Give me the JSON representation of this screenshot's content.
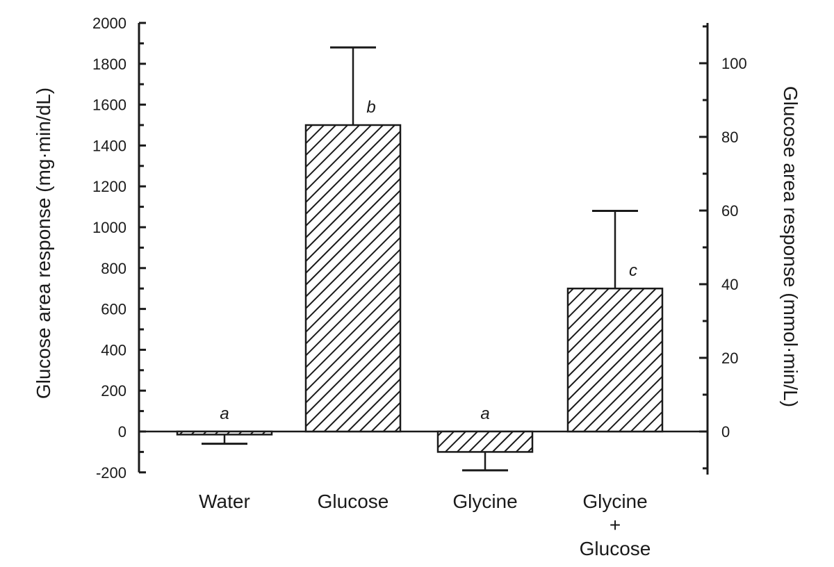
{
  "chart_data": {
    "type": "bar",
    "title": "",
    "categories": [
      "Water",
      "Glucose",
      "Glycine",
      "Glycine + Glucose"
    ],
    "category_label_lines": [
      [
        "Water"
      ],
      [
        "Glucose"
      ],
      [
        "Glycine"
      ],
      [
        "Glycine",
        "+",
        "Glucose"
      ]
    ],
    "series": [
      {
        "name": "Glucose area response",
        "values": [
          -15,
          1500,
          -100,
          700
        ],
        "error_bars": [
          45,
          380,
          90,
          380
        ],
        "error_direction": [
          "down",
          "up",
          "down",
          "up"
        ],
        "significance_letters": [
          "a",
          "b",
          "a",
          "c"
        ],
        "fill_pattern": "diagonal-hatch"
      }
    ],
    "xlabel": "",
    "ylabel": "Glucose area response (mg·min/dL)",
    "ylim": [
      -200,
      2000
    ],
    "yticks": [
      -200,
      0,
      200,
      400,
      600,
      800,
      1000,
      1200,
      1400,
      1600,
      1800,
      2000
    ],
    "y2label": "Glucose area response (mmol·min/L)",
    "y2lim": [
      -11.1,
      111
    ],
    "y2ticks": [
      0,
      20,
      40,
      60,
      80,
      100
    ],
    "grid": false,
    "legend": null
  },
  "axes": {
    "left_title": "Glucose area response (mg·min/dL)",
    "right_title": "Glucose area response (mmol·min/L)",
    "left_ticks": [
      "-200",
      "0",
      "200",
      "400",
      "600",
      "800",
      "1000",
      "1200",
      "1400",
      "1600",
      "1800",
      "2000"
    ],
    "right_ticks": [
      "0",
      "20",
      "40",
      "60",
      "80",
      "100"
    ]
  },
  "colors": {
    "ink": "#1a1a1a",
    "background": "#ffffff"
  }
}
